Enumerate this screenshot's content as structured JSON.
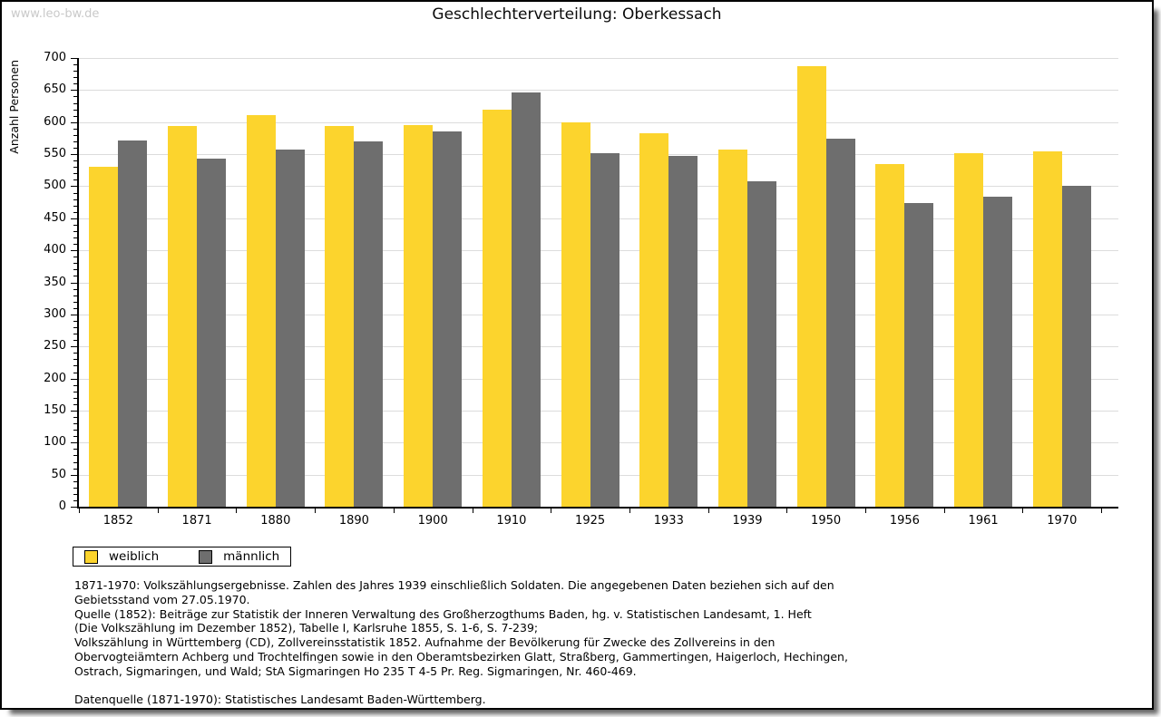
{
  "page": {
    "watermark": "www.leo-bw.de",
    "title": "Geschlechterverteilung: Oberkessach"
  },
  "colors": {
    "bar_female": "#FCD42D",
    "bar_male": "#6E6E6E",
    "gridline": "#DCDCDC",
    "axis": "#000000",
    "watermark": "#C9C9C9"
  },
  "chart_data": {
    "type": "bar",
    "title": "Geschlechterverteilung: Oberkessach",
    "xlabel": "",
    "ylabel": "Anzahl Personen",
    "ylim": [
      0,
      700
    ],
    "ytick_step": 50,
    "yminor_step": 10,
    "grid": true,
    "legend_position": "bottom-left",
    "categories": [
      "1852",
      "1871",
      "1880",
      "1890",
      "1900",
      "1910",
      "1925",
      "1933",
      "1939",
      "1950",
      "1956",
      "1961",
      "1970"
    ],
    "series": [
      {
        "name": "weiblich",
        "color": "#FCD42D",
        "values": [
          531,
          594,
          611,
          594,
          596,
          619,
          600,
          583,
          557,
          688,
          534,
          552,
          554
        ]
      },
      {
        "name": "männlich",
        "color": "#6E6E6E",
        "values": [
          571,
          543,
          557,
          570,
          585,
          646,
          551,
          547,
          508,
          574,
          474,
          483,
          501
        ]
      }
    ]
  },
  "footnotes": {
    "lines": [
      "1871-1970: Volkszählungsergebnisse. Zahlen des Jahres 1939 einschließlich Soldaten. Die angegebenen Daten beziehen sich auf den",
      "Gebietsstand vom 27.05.1970.",
      "Quelle (1852): Beiträge zur Statistik der Inneren Verwaltung des Großherzogthums Baden, hg. v. Statistischen Landesamt, 1. Heft",
      "(Die Volkszählung im Dezember 1852), Tabelle I, Karlsruhe 1855, S. 1-6, S. 7-239;",
      "Volkszählung in Württemberg (CD), Zollvereinsstatistik 1852. Aufnahme der Bevölkerung für Zwecke des Zollvereins in den",
      "Obervogteiämtern Achberg und Trochtelfingen sowie in den Oberamtsbezirken Glatt, Straßberg, Gammertingen, Haigerloch, Hechingen,",
      "Ostrach, Sigmaringen, und Wald; StA Sigmaringen Ho 235 T 4-5 Pr. Reg. Sigmaringen, Nr. 460-469.",
      "",
      "Datenquelle (1871-1970): Statistisches Landesamt Baden-Württemberg."
    ]
  }
}
